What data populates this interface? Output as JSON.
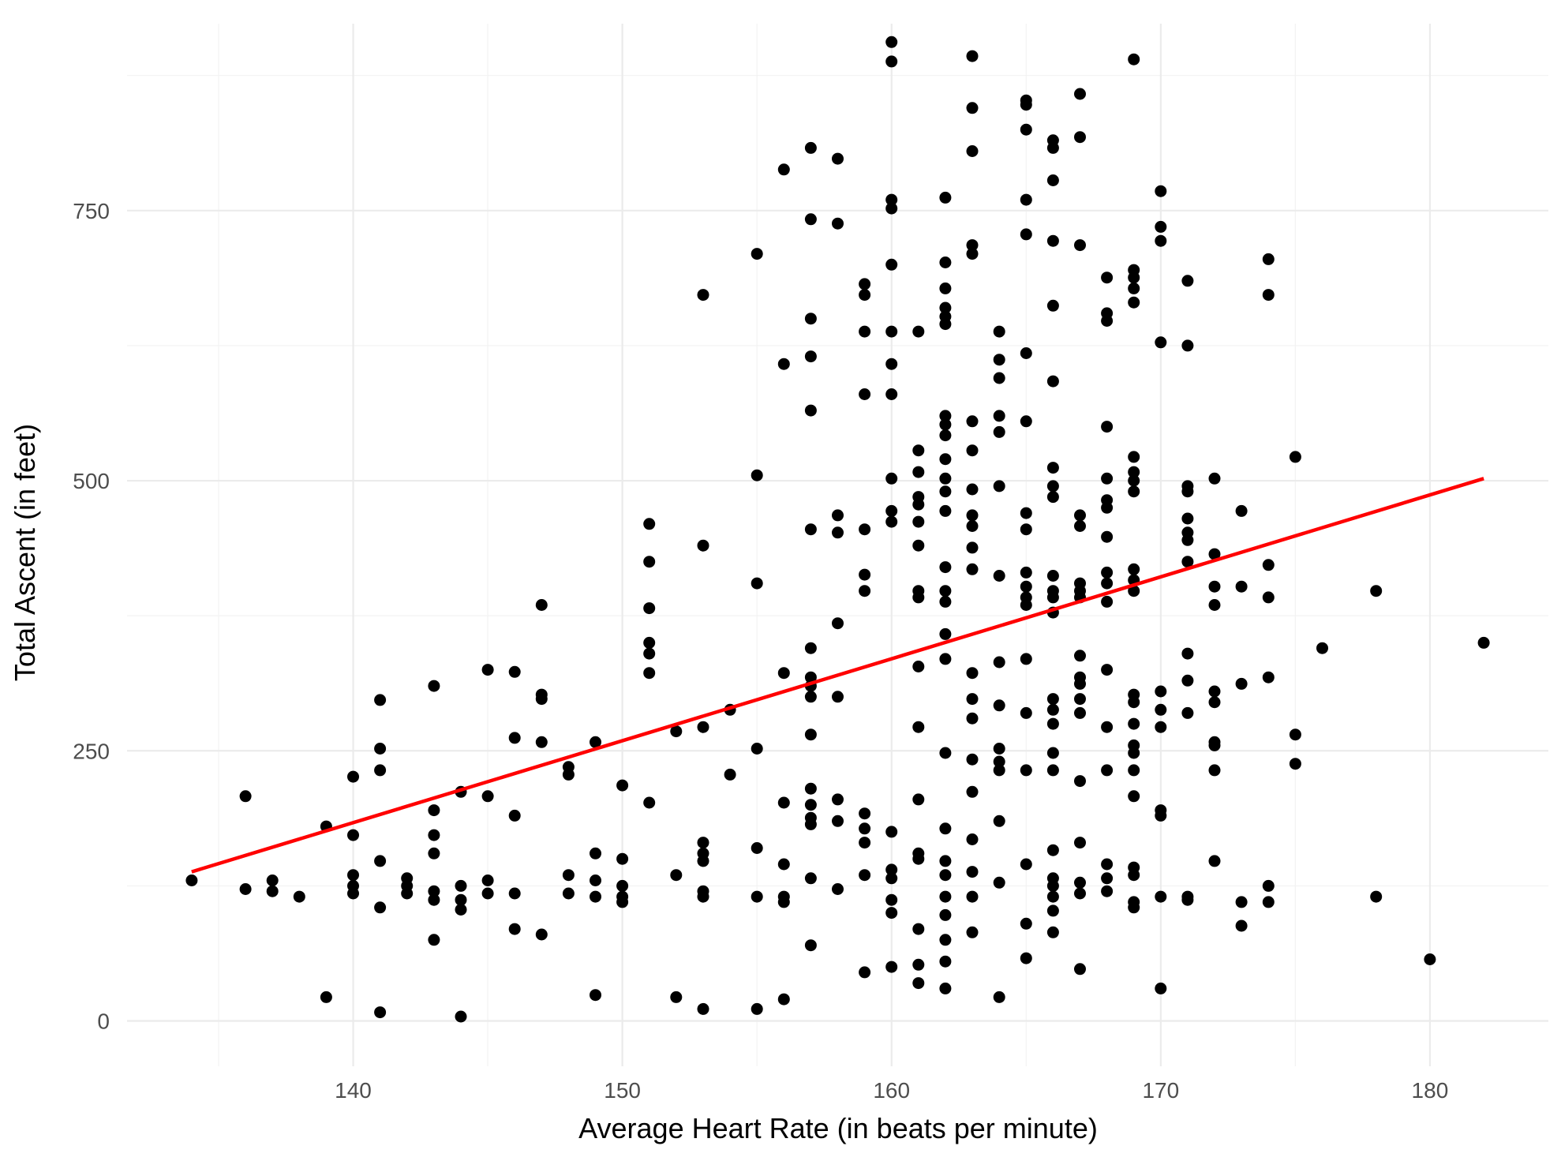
{
  "chart_data": {
    "type": "scatter",
    "title": "",
    "xlabel": "Average Heart Rate (in beats per minute)",
    "ylabel": "Total Ascent (in feet)",
    "xlim": [
      131.6,
      184.4
    ],
    "ylim": [
      -42,
      923
    ],
    "x_ticks": [
      140,
      150,
      160,
      170,
      180
    ],
    "x_tick_labels": [
      "140",
      "150",
      "160",
      "170",
      "180"
    ],
    "y_ticks": [
      0,
      250,
      500,
      750
    ],
    "y_tick_labels": [
      "0",
      "250",
      "500",
      "750"
    ],
    "grid": true,
    "legend": "none",
    "point_color": "#000000",
    "trend_line": {
      "type": "linear",
      "color": "#ff0000",
      "x": [
        134,
        182
      ],
      "y": [
        138,
        502
      ]
    },
    "points": [
      [
        134,
        130
      ],
      [
        136,
        122
      ],
      [
        136,
        208
      ],
      [
        137,
        120
      ],
      [
        137,
        130
      ],
      [
        138,
        115
      ],
      [
        139,
        22
      ],
      [
        139,
        180
      ],
      [
        140,
        118
      ],
      [
        140,
        125
      ],
      [
        140,
        135
      ],
      [
        140,
        172
      ],
      [
        140,
        226
      ],
      [
        141,
        8
      ],
      [
        141,
        105
      ],
      [
        141,
        148
      ],
      [
        141,
        232
      ],
      [
        141,
        252
      ],
      [
        141,
        297
      ],
      [
        142,
        118
      ],
      [
        142,
        125
      ],
      [
        142,
        132
      ],
      [
        143,
        75
      ],
      [
        143,
        112
      ],
      [
        143,
        120
      ],
      [
        143,
        155
      ],
      [
        143,
        172
      ],
      [
        143,
        195
      ],
      [
        143,
        310
      ],
      [
        144,
        4
      ],
      [
        144,
        103
      ],
      [
        144,
        112
      ],
      [
        144,
        125
      ],
      [
        144,
        212
      ],
      [
        145,
        118
      ],
      [
        145,
        130
      ],
      [
        145,
        208
      ],
      [
        145,
        325
      ],
      [
        146,
        85
      ],
      [
        146,
        118
      ],
      [
        146,
        190
      ],
      [
        146,
        262
      ],
      [
        146,
        323
      ],
      [
        147,
        80
      ],
      [
        147,
        258
      ],
      [
        147,
        298
      ],
      [
        147,
        302
      ],
      [
        147,
        385
      ],
      [
        148,
        118
      ],
      [
        148,
        135
      ],
      [
        148,
        228
      ],
      [
        148,
        235
      ],
      [
        149,
        24
      ],
      [
        149,
        115
      ],
      [
        149,
        130
      ],
      [
        149,
        155
      ],
      [
        149,
        258
      ],
      [
        150,
        110
      ],
      [
        150,
        115
      ],
      [
        150,
        125
      ],
      [
        150,
        150
      ],
      [
        150,
        218
      ],
      [
        151,
        202
      ],
      [
        151,
        322
      ],
      [
        151,
        340
      ],
      [
        151,
        350
      ],
      [
        151,
        382
      ],
      [
        151,
        425
      ],
      [
        151,
        460
      ],
      [
        152,
        22
      ],
      [
        152,
        135
      ],
      [
        152,
        268
      ],
      [
        153,
        11
      ],
      [
        153,
        115
      ],
      [
        153,
        120
      ],
      [
        153,
        148
      ],
      [
        153,
        155
      ],
      [
        153,
        165
      ],
      [
        153,
        272
      ],
      [
        153,
        440
      ],
      [
        153,
        672
      ],
      [
        154,
        228
      ],
      [
        154,
        288
      ],
      [
        155,
        11
      ],
      [
        155,
        115
      ],
      [
        155,
        160
      ],
      [
        155,
        252
      ],
      [
        155,
        405
      ],
      [
        155,
        505
      ],
      [
        155,
        710
      ],
      [
        156,
        20
      ],
      [
        156,
        110
      ],
      [
        156,
        115
      ],
      [
        156,
        145
      ],
      [
        156,
        202
      ],
      [
        156,
        322
      ],
      [
        156,
        608
      ],
      [
        156,
        788
      ],
      [
        157,
        70
      ],
      [
        157,
        132
      ],
      [
        157,
        182
      ],
      [
        157,
        188
      ],
      [
        157,
        200
      ],
      [
        157,
        215
      ],
      [
        157,
        265
      ],
      [
        157,
        300
      ],
      [
        157,
        310
      ],
      [
        157,
        318
      ],
      [
        157,
        345
      ],
      [
        157,
        455
      ],
      [
        157,
        565
      ],
      [
        157,
        615
      ],
      [
        157,
        650
      ],
      [
        157,
        742
      ],
      [
        157,
        808
      ],
      [
        158,
        122
      ],
      [
        158,
        185
      ],
      [
        158,
        205
      ],
      [
        158,
        300
      ],
      [
        158,
        368
      ],
      [
        158,
        452
      ],
      [
        158,
        468
      ],
      [
        158,
        738
      ],
      [
        158,
        798
      ],
      [
        159,
        45
      ],
      [
        159,
        135
      ],
      [
        159,
        165
      ],
      [
        159,
        178
      ],
      [
        159,
        192
      ],
      [
        159,
        398
      ],
      [
        159,
        413
      ],
      [
        159,
        455
      ],
      [
        159,
        580
      ],
      [
        159,
        638
      ],
      [
        159,
        672
      ],
      [
        159,
        682
      ],
      [
        160,
        50
      ],
      [
        160,
        100
      ],
      [
        160,
        112
      ],
      [
        160,
        132
      ],
      [
        160,
        140
      ],
      [
        160,
        175
      ],
      [
        160,
        462
      ],
      [
        160,
        472
      ],
      [
        160,
        502
      ],
      [
        160,
        580
      ],
      [
        160,
        608
      ],
      [
        160,
        638
      ],
      [
        160,
        700
      ],
      [
        160,
        752
      ],
      [
        160,
        760
      ],
      [
        160,
        888
      ],
      [
        160,
        906
      ],
      [
        161,
        35
      ],
      [
        161,
        52
      ],
      [
        161,
        85
      ],
      [
        161,
        150
      ],
      [
        161,
        155
      ],
      [
        161,
        205
      ],
      [
        161,
        272
      ],
      [
        161,
        328
      ],
      [
        161,
        392
      ],
      [
        161,
        398
      ],
      [
        161,
        440
      ],
      [
        161,
        462
      ],
      [
        161,
        478
      ],
      [
        161,
        485
      ],
      [
        161,
        508
      ],
      [
        161,
        528
      ],
      [
        161,
        638
      ],
      [
        162,
        30
      ],
      [
        162,
        55
      ],
      [
        162,
        75
      ],
      [
        162,
        98
      ],
      [
        162,
        115
      ],
      [
        162,
        135
      ],
      [
        162,
        148
      ],
      [
        162,
        178
      ],
      [
        162,
        248
      ],
      [
        162,
        335
      ],
      [
        162,
        358
      ],
      [
        162,
        388
      ],
      [
        162,
        398
      ],
      [
        162,
        420
      ],
      [
        162,
        472
      ],
      [
        162,
        490
      ],
      [
        162,
        502
      ],
      [
        162,
        520
      ],
      [
        162,
        542
      ],
      [
        162,
        552
      ],
      [
        162,
        560
      ],
      [
        162,
        645
      ],
      [
        162,
        652
      ],
      [
        162,
        660
      ],
      [
        162,
        678
      ],
      [
        162,
        702
      ],
      [
        162,
        762
      ],
      [
        163,
        82
      ],
      [
        163,
        115
      ],
      [
        163,
        138
      ],
      [
        163,
        168
      ],
      [
        163,
        212
      ],
      [
        163,
        242
      ],
      [
        163,
        280
      ],
      [
        163,
        298
      ],
      [
        163,
        322
      ],
      [
        163,
        418
      ],
      [
        163,
        438
      ],
      [
        163,
        458
      ],
      [
        163,
        468
      ],
      [
        163,
        492
      ],
      [
        163,
        528
      ],
      [
        163,
        555
      ],
      [
        163,
        710
      ],
      [
        163,
        718
      ],
      [
        163,
        805
      ],
      [
        163,
        845
      ],
      [
        163,
        893
      ],
      [
        164,
        22
      ],
      [
        164,
        128
      ],
      [
        164,
        185
      ],
      [
        164,
        232
      ],
      [
        164,
        240
      ],
      [
        164,
        252
      ],
      [
        164,
        292
      ],
      [
        164,
        332
      ],
      [
        164,
        412
      ],
      [
        164,
        495
      ],
      [
        164,
        545
      ],
      [
        164,
        560
      ],
      [
        164,
        595
      ],
      [
        164,
        612
      ],
      [
        164,
        638
      ],
      [
        165,
        58
      ],
      [
        165,
        90
      ],
      [
        165,
        145
      ],
      [
        165,
        232
      ],
      [
        165,
        285
      ],
      [
        165,
        335
      ],
      [
        165,
        385
      ],
      [
        165,
        392
      ],
      [
        165,
        402
      ],
      [
        165,
        415
      ],
      [
        165,
        455
      ],
      [
        165,
        470
      ],
      [
        165,
        555
      ],
      [
        165,
        618
      ],
      [
        165,
        728
      ],
      [
        165,
        760
      ],
      [
        165,
        825
      ],
      [
        165,
        848
      ],
      [
        165,
        852
      ],
      [
        166,
        82
      ],
      [
        166,
        102
      ],
      [
        166,
        115
      ],
      [
        166,
        125
      ],
      [
        166,
        132
      ],
      [
        166,
        158
      ],
      [
        166,
        232
      ],
      [
        166,
        248
      ],
      [
        166,
        275
      ],
      [
        166,
        288
      ],
      [
        166,
        298
      ],
      [
        166,
        378
      ],
      [
        166,
        392
      ],
      [
        166,
        398
      ],
      [
        166,
        412
      ],
      [
        166,
        485
      ],
      [
        166,
        495
      ],
      [
        166,
        512
      ],
      [
        166,
        592
      ],
      [
        166,
        662
      ],
      [
        166,
        722
      ],
      [
        166,
        778
      ],
      [
        166,
        808
      ],
      [
        166,
        815
      ],
      [
        167,
        48
      ],
      [
        167,
        118
      ],
      [
        167,
        128
      ],
      [
        167,
        165
      ],
      [
        167,
        222
      ],
      [
        167,
        285
      ],
      [
        167,
        298
      ],
      [
        167,
        312
      ],
      [
        167,
        318
      ],
      [
        167,
        338
      ],
      [
        167,
        392
      ],
      [
        167,
        398
      ],
      [
        167,
        405
      ],
      [
        167,
        458
      ],
      [
        167,
        468
      ],
      [
        167,
        718
      ],
      [
        167,
        818
      ],
      [
        167,
        858
      ],
      [
        168,
        120
      ],
      [
        168,
        132
      ],
      [
        168,
        145
      ],
      [
        168,
        232
      ],
      [
        168,
        272
      ],
      [
        168,
        325
      ],
      [
        168,
        388
      ],
      [
        168,
        405
      ],
      [
        168,
        415
      ],
      [
        168,
        448
      ],
      [
        168,
        475
      ],
      [
        168,
        482
      ],
      [
        168,
        502
      ],
      [
        168,
        550
      ],
      [
        168,
        648
      ],
      [
        168,
        655
      ],
      [
        168,
        688
      ],
      [
        169,
        105
      ],
      [
        169,
        110
      ],
      [
        169,
        135
      ],
      [
        169,
        142
      ],
      [
        169,
        208
      ],
      [
        169,
        232
      ],
      [
        169,
        248
      ],
      [
        169,
        255
      ],
      [
        169,
        275
      ],
      [
        169,
        295
      ],
      [
        169,
        302
      ],
      [
        169,
        398
      ],
      [
        169,
        408
      ],
      [
        169,
        418
      ],
      [
        169,
        490
      ],
      [
        169,
        500
      ],
      [
        169,
        508
      ],
      [
        169,
        522
      ],
      [
        169,
        665
      ],
      [
        169,
        678
      ],
      [
        169,
        688
      ],
      [
        169,
        695
      ],
      [
        169,
        890
      ],
      [
        170,
        30
      ],
      [
        170,
        115
      ],
      [
        170,
        190
      ],
      [
        170,
        195
      ],
      [
        170,
        272
      ],
      [
        170,
        288
      ],
      [
        170,
        305
      ],
      [
        170,
        628
      ],
      [
        170,
        722
      ],
      [
        170,
        735
      ],
      [
        170,
        768
      ],
      [
        171,
        112
      ],
      [
        171,
        115
      ],
      [
        171,
        285
      ],
      [
        171,
        315
      ],
      [
        171,
        340
      ],
      [
        171,
        425
      ],
      [
        171,
        445
      ],
      [
        171,
        452
      ],
      [
        171,
        465
      ],
      [
        171,
        490
      ],
      [
        171,
        495
      ],
      [
        171,
        625
      ],
      [
        171,
        685
      ],
      [
        172,
        148
      ],
      [
        172,
        232
      ],
      [
        172,
        255
      ],
      [
        172,
        258
      ],
      [
        172,
        295
      ],
      [
        172,
        305
      ],
      [
        172,
        385
      ],
      [
        172,
        402
      ],
      [
        172,
        432
      ],
      [
        172,
        502
      ],
      [
        173,
        88
      ],
      [
        173,
        110
      ],
      [
        173,
        312
      ],
      [
        173,
        402
      ],
      [
        173,
        472
      ],
      [
        174,
        110
      ],
      [
        174,
        125
      ],
      [
        174,
        318
      ],
      [
        174,
        392
      ],
      [
        174,
        422
      ],
      [
        174,
        672
      ],
      [
        174,
        705
      ],
      [
        175,
        238
      ],
      [
        175,
        265
      ],
      [
        175,
        522
      ],
      [
        176,
        345
      ],
      [
        178,
        115
      ],
      [
        178,
        398
      ],
      [
        180,
        57
      ],
      [
        182,
        350
      ]
    ]
  }
}
